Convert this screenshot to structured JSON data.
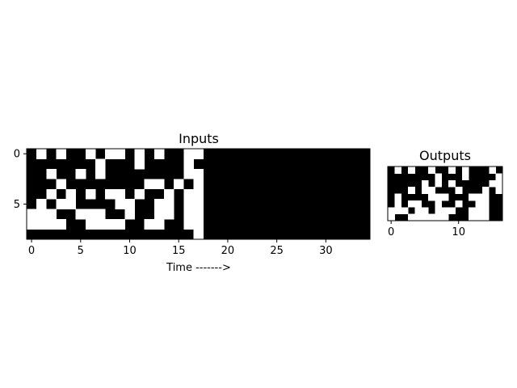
{
  "chart_data": [
    {
      "type": "heatmap",
      "title": "Inputs",
      "xlabel": "Time ------->",
      "ylabel": "",
      "colormap": "gray",
      "colors": {
        "on": "#ffffff",
        "off": "#000000"
      },
      "xticks": [
        "0",
        "5",
        "10",
        "15",
        "20",
        "25",
        "30"
      ],
      "yticks": [
        "0",
        "5"
      ],
      "xtick_values": [
        0,
        5,
        10,
        15,
        20,
        25,
        30
      ],
      "ytick_values": [
        0,
        5
      ],
      "n_cols": 35,
      "n_rows": 9,
      "grid": false,
      "rows": [
        "01010010110101001100000000000000000",
        "00000001000100001000000000000000000",
        "00100101000000001100000000000000000",
        "00010000000011010100000000000000000",
        "00101010110100101100000000000000000",
        "01011000011001101100000000000000000",
        "11100111001001101100000000000000000",
        "11110011110011001100000000000000000",
        "00000000000000000100000000000000000"
      ]
    },
    {
      "type": "heatmap",
      "title": "Outputs",
      "xlabel": "",
      "ylabel": "",
      "colormap": "gray",
      "colors": {
        "on": "#ffffff",
        "off": "#000000"
      },
      "xticks": [
        "0",
        "10"
      ],
      "yticks": [],
      "xtick_values": [
        0,
        10
      ],
      "ytick_values": [],
      "n_cols": 17,
      "n_rows": 8,
      "grid": false,
      "rows": [
        "01010010010100010",
        "00000001000100001",
        "00000101010000011",
        "00010110001000101",
        "01000011100011100",
        "01011001001001100",
        "11101101110011100",
        "10011111100011100"
      ]
    }
  ]
}
